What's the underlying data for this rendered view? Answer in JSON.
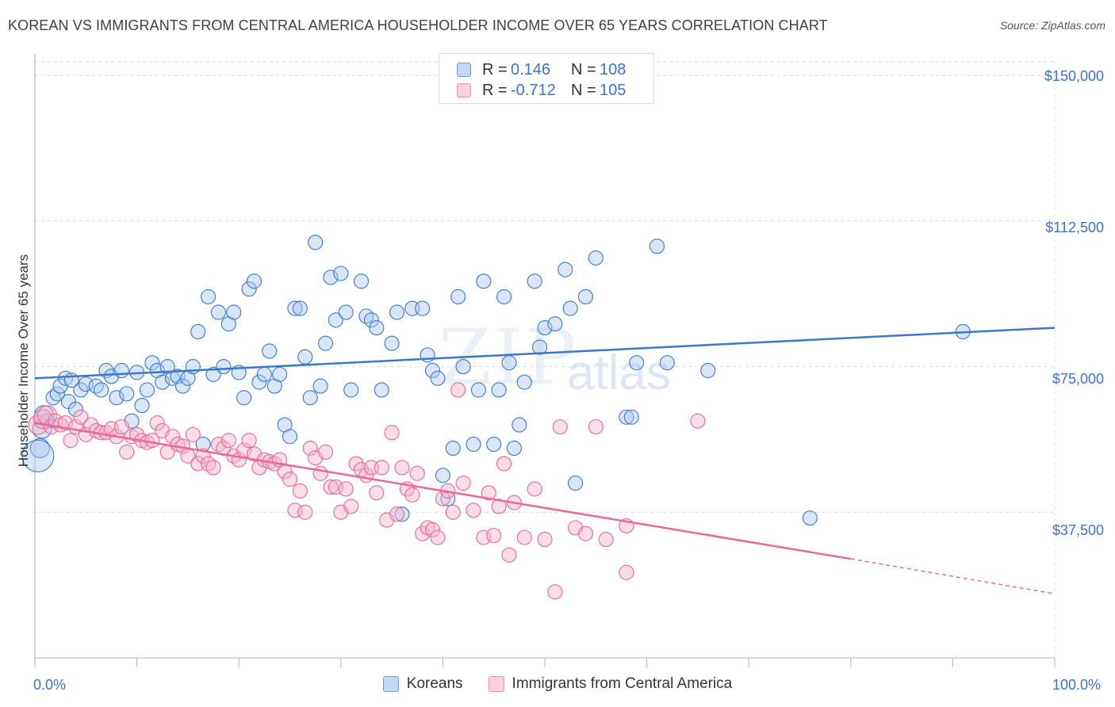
{
  "title": "KOREAN VS IMMIGRANTS FROM CENTRAL AMERICA HOUSEHOLDER INCOME OVER 65 YEARS CORRELATION CHART",
  "source": "Source: ZipAtlas.com",
  "watermark": {
    "zip": "ZIP",
    "atlas": "atlas"
  },
  "legend_top": [
    {
      "r_label": "R =",
      "r_value": "0.146",
      "n_label": "N =",
      "n_value": "108"
    },
    {
      "r_label": "R =",
      "r_value": "-0.712",
      "n_label": "N =",
      "n_value": "105"
    }
  ],
  "colors": {
    "blue": "#3b78c9",
    "blue_fill": "#a9c8ef",
    "pink": "#e8689a",
    "pink_fill": "#f5b4ca",
    "tick": "#3c73c8",
    "grid": "#d9d9d9"
  },
  "chart_data": {
    "type": "scatter",
    "title": "KOREAN VS IMMIGRANTS FROM CENTRAL AMERICA HOUSEHOLDER INCOME OVER 65 YEARS CORRELATION CHART",
    "xlabel": "",
    "ylabel": "Householder Income Over 65 years",
    "x_tick_labels": [
      "0.0%",
      "100.0%"
    ],
    "y_tick_labels": [
      "$37,500",
      "$75,000",
      "$112,500",
      "$150,000"
    ],
    "y_ticks": [
      37500,
      75000,
      112500,
      150000
    ],
    "xlim": [
      0,
      100
    ],
    "ylim": [
      0,
      153500
    ],
    "grid": true,
    "legend_placement": "bottom-center",
    "series": [
      {
        "name": "Koreans",
        "r": 0.146,
        "n": 108,
        "trend": {
          "x0": 0,
          "y0": 72000,
          "x1": 100,
          "y1": 85000
        },
        "points": [
          [
            0.5,
            54000
          ],
          [
            0.7,
            59000
          ],
          [
            0.9,
            62500
          ],
          [
            1.2,
            61000
          ],
          [
            1.8,
            67000
          ],
          [
            2.2,
            68000
          ],
          [
            2.5,
            70000
          ],
          [
            3.0,
            72000
          ],
          [
            3.3,
            66000
          ],
          [
            3.6,
            71500
          ],
          [
            4.0,
            64000
          ],
          [
            4.5,
            69000
          ],
          [
            5.0,
            70500
          ],
          [
            6.0,
            70000
          ],
          [
            6.5,
            69000
          ],
          [
            7.0,
            74000
          ],
          [
            7.5,
            72500
          ],
          [
            8.0,
            67000
          ],
          [
            8.5,
            74000
          ],
          [
            9.0,
            68000
          ],
          [
            9.5,
            61000
          ],
          [
            10,
            73500
          ],
          [
            10.5,
            65000
          ],
          [
            11,
            69000
          ],
          [
            11.5,
            76000
          ],
          [
            12,
            74000
          ],
          [
            12.5,
            71000
          ],
          [
            13,
            75000
          ],
          [
            13.5,
            72000
          ],
          [
            14,
            72500
          ],
          [
            14.5,
            70000
          ],
          [
            15,
            72000
          ],
          [
            15.5,
            75000
          ],
          [
            16,
            84000
          ],
          [
            16.5,
            55000
          ],
          [
            17,
            93000
          ],
          [
            17.5,
            73000
          ],
          [
            18,
            89000
          ],
          [
            18.5,
            75000
          ],
          [
            19,
            86000
          ],
          [
            19.5,
            89000
          ],
          [
            20,
            73500
          ],
          [
            20.5,
            67000
          ],
          [
            21,
            95000
          ],
          [
            21.5,
            97000
          ],
          [
            22,
            71000
          ],
          [
            22.5,
            73000
          ],
          [
            23,
            79000
          ],
          [
            23.5,
            70000
          ],
          [
            24,
            73000
          ],
          [
            24.5,
            60000
          ],
          [
            25,
            57000
          ],
          [
            25.5,
            90000
          ],
          [
            26,
            90000
          ],
          [
            26.5,
            77500
          ],
          [
            27,
            67000
          ],
          [
            27.5,
            107000
          ],
          [
            28,
            70000
          ],
          [
            28.5,
            81000
          ],
          [
            29,
            98000
          ],
          [
            29.5,
            87000
          ],
          [
            30,
            99000
          ],
          [
            30.5,
            89000
          ],
          [
            31,
            69000
          ],
          [
            32,
            97000
          ],
          [
            32.5,
            88000
          ],
          [
            33,
            87000
          ],
          [
            33.5,
            85000
          ],
          [
            34,
            69000
          ],
          [
            35,
            81000
          ],
          [
            35.5,
            89000
          ],
          [
            36,
            37000
          ],
          [
            37,
            90000
          ],
          [
            38,
            90000
          ],
          [
            38.5,
            78000
          ],
          [
            39,
            74000
          ],
          [
            39.5,
            72000
          ],
          [
            40,
            47000
          ],
          [
            40.5,
            41000
          ],
          [
            41,
            54000
          ],
          [
            41.5,
            93000
          ],
          [
            42,
            75000
          ],
          [
            43,
            55000
          ],
          [
            43.5,
            69000
          ],
          [
            44,
            97000
          ],
          [
            45,
            55000
          ],
          [
            45.5,
            69000
          ],
          [
            46,
            93000
          ],
          [
            46.5,
            76000
          ],
          [
            47,
            54000
          ],
          [
            47.5,
            60000
          ],
          [
            48,
            71000
          ],
          [
            49,
            97000
          ],
          [
            49.5,
            80000
          ],
          [
            50,
            85000
          ],
          [
            51,
            86000
          ],
          [
            52,
            100000
          ],
          [
            52.5,
            90000
          ],
          [
            53,
            45000
          ],
          [
            54,
            93000
          ],
          [
            55,
            103000
          ],
          [
            58,
            62000
          ],
          [
            58.5,
            62000
          ],
          [
            59,
            76000
          ],
          [
            61,
            106000
          ],
          [
            62,
            76000
          ],
          [
            66,
            74000
          ],
          [
            76,
            36000
          ],
          [
            91,
            84000
          ],
          [
            0.3,
            52000
          ]
        ]
      },
      {
        "name": "Immigrants from Central America",
        "r": -0.712,
        "n": 105,
        "trend": {
          "x0": 0,
          "y0": 60500,
          "x1": 80,
          "y1": 25500,
          "dash_x1": 100,
          "dash_y1": 16500
        },
        "points": [
          [
            0.3,
            60000
          ],
          [
            0.8,
            61500
          ],
          [
            1.2,
            62500
          ],
          [
            1.6,
            59500
          ],
          [
            2.0,
            61000
          ],
          [
            2.5,
            60000
          ],
          [
            3.0,
            60500
          ],
          [
            3.5,
            56000
          ],
          [
            4.0,
            59500
          ],
          [
            4.5,
            62000
          ],
          [
            5.0,
            57500
          ],
          [
            5.5,
            60000
          ],
          [
            6.0,
            58500
          ],
          [
            6.5,
            58000
          ],
          [
            7.0,
            58000
          ],
          [
            7.5,
            59000
          ],
          [
            8.0,
            57000
          ],
          [
            8.5,
            59500
          ],
          [
            9.0,
            53000
          ],
          [
            9.5,
            57000
          ],
          [
            10,
            57500
          ],
          [
            10.5,
            56000
          ],
          [
            11,
            55500
          ],
          [
            11.5,
            56000
          ],
          [
            12,
            60500
          ],
          [
            12.5,
            58500
          ],
          [
            13,
            53000
          ],
          [
            13.5,
            57000
          ],
          [
            14,
            55000
          ],
          [
            14.5,
            54500
          ],
          [
            15,
            52000
          ],
          [
            15.5,
            57500
          ],
          [
            16,
            50000
          ],
          [
            16.5,
            52000
          ],
          [
            17,
            50000
          ],
          [
            17.5,
            49000
          ],
          [
            18,
            55000
          ],
          [
            18.5,
            54000
          ],
          [
            19,
            56000
          ],
          [
            19.5,
            52000
          ],
          [
            20,
            51000
          ],
          [
            20.5,
            53500
          ],
          [
            21,
            56000
          ],
          [
            21.5,
            52500
          ],
          [
            22,
            49000
          ],
          [
            22.5,
            51000
          ],
          [
            23,
            50500
          ],
          [
            23.5,
            50000
          ],
          [
            24,
            51000
          ],
          [
            24.5,
            48000
          ],
          [
            25,
            46000
          ],
          [
            25.5,
            38000
          ],
          [
            26,
            43000
          ],
          [
            26.5,
            37500
          ],
          [
            27,
            54000
          ],
          [
            27.5,
            51500
          ],
          [
            28,
            47500
          ],
          [
            28.5,
            53000
          ],
          [
            29,
            44000
          ],
          [
            29.5,
            44000
          ],
          [
            30,
            37500
          ],
          [
            30.5,
            43500
          ],
          [
            31,
            39000
          ],
          [
            31.5,
            50000
          ],
          [
            32,
            48500
          ],
          [
            32.5,
            47000
          ],
          [
            33,
            49000
          ],
          [
            33.5,
            42500
          ],
          [
            34,
            49000
          ],
          [
            34.5,
            35500
          ],
          [
            35,
            58000
          ],
          [
            35.5,
            37000
          ],
          [
            36,
            49000
          ],
          [
            36.5,
            43500
          ],
          [
            37,
            42000
          ],
          [
            37.5,
            47500
          ],
          [
            38,
            32000
          ],
          [
            38.5,
            33500
          ],
          [
            39,
            33000
          ],
          [
            39.5,
            31000
          ],
          [
            40,
            41000
          ],
          [
            40.5,
            43000
          ],
          [
            41,
            37500
          ],
          [
            41.5,
            69000
          ],
          [
            42,
            45000
          ],
          [
            43,
            38000
          ],
          [
            44,
            31000
          ],
          [
            44.5,
            42500
          ],
          [
            45,
            31500
          ],
          [
            45.5,
            39000
          ],
          [
            46,
            50000
          ],
          [
            46.5,
            26500
          ],
          [
            47,
            40000
          ],
          [
            48,
            31000
          ],
          [
            49,
            43500
          ],
          [
            50,
            30500
          ],
          [
            51,
            17000
          ],
          [
            51.5,
            59500
          ],
          [
            53,
            33500
          ],
          [
            54,
            32000
          ],
          [
            55,
            59500
          ],
          [
            56,
            30500
          ],
          [
            58,
            22000
          ],
          [
            58,
            34000
          ],
          [
            65,
            61000
          ]
        ]
      }
    ]
  },
  "legend_bottom": [
    {
      "label": "Koreans"
    },
    {
      "label": "Immigrants from Central America"
    }
  ]
}
